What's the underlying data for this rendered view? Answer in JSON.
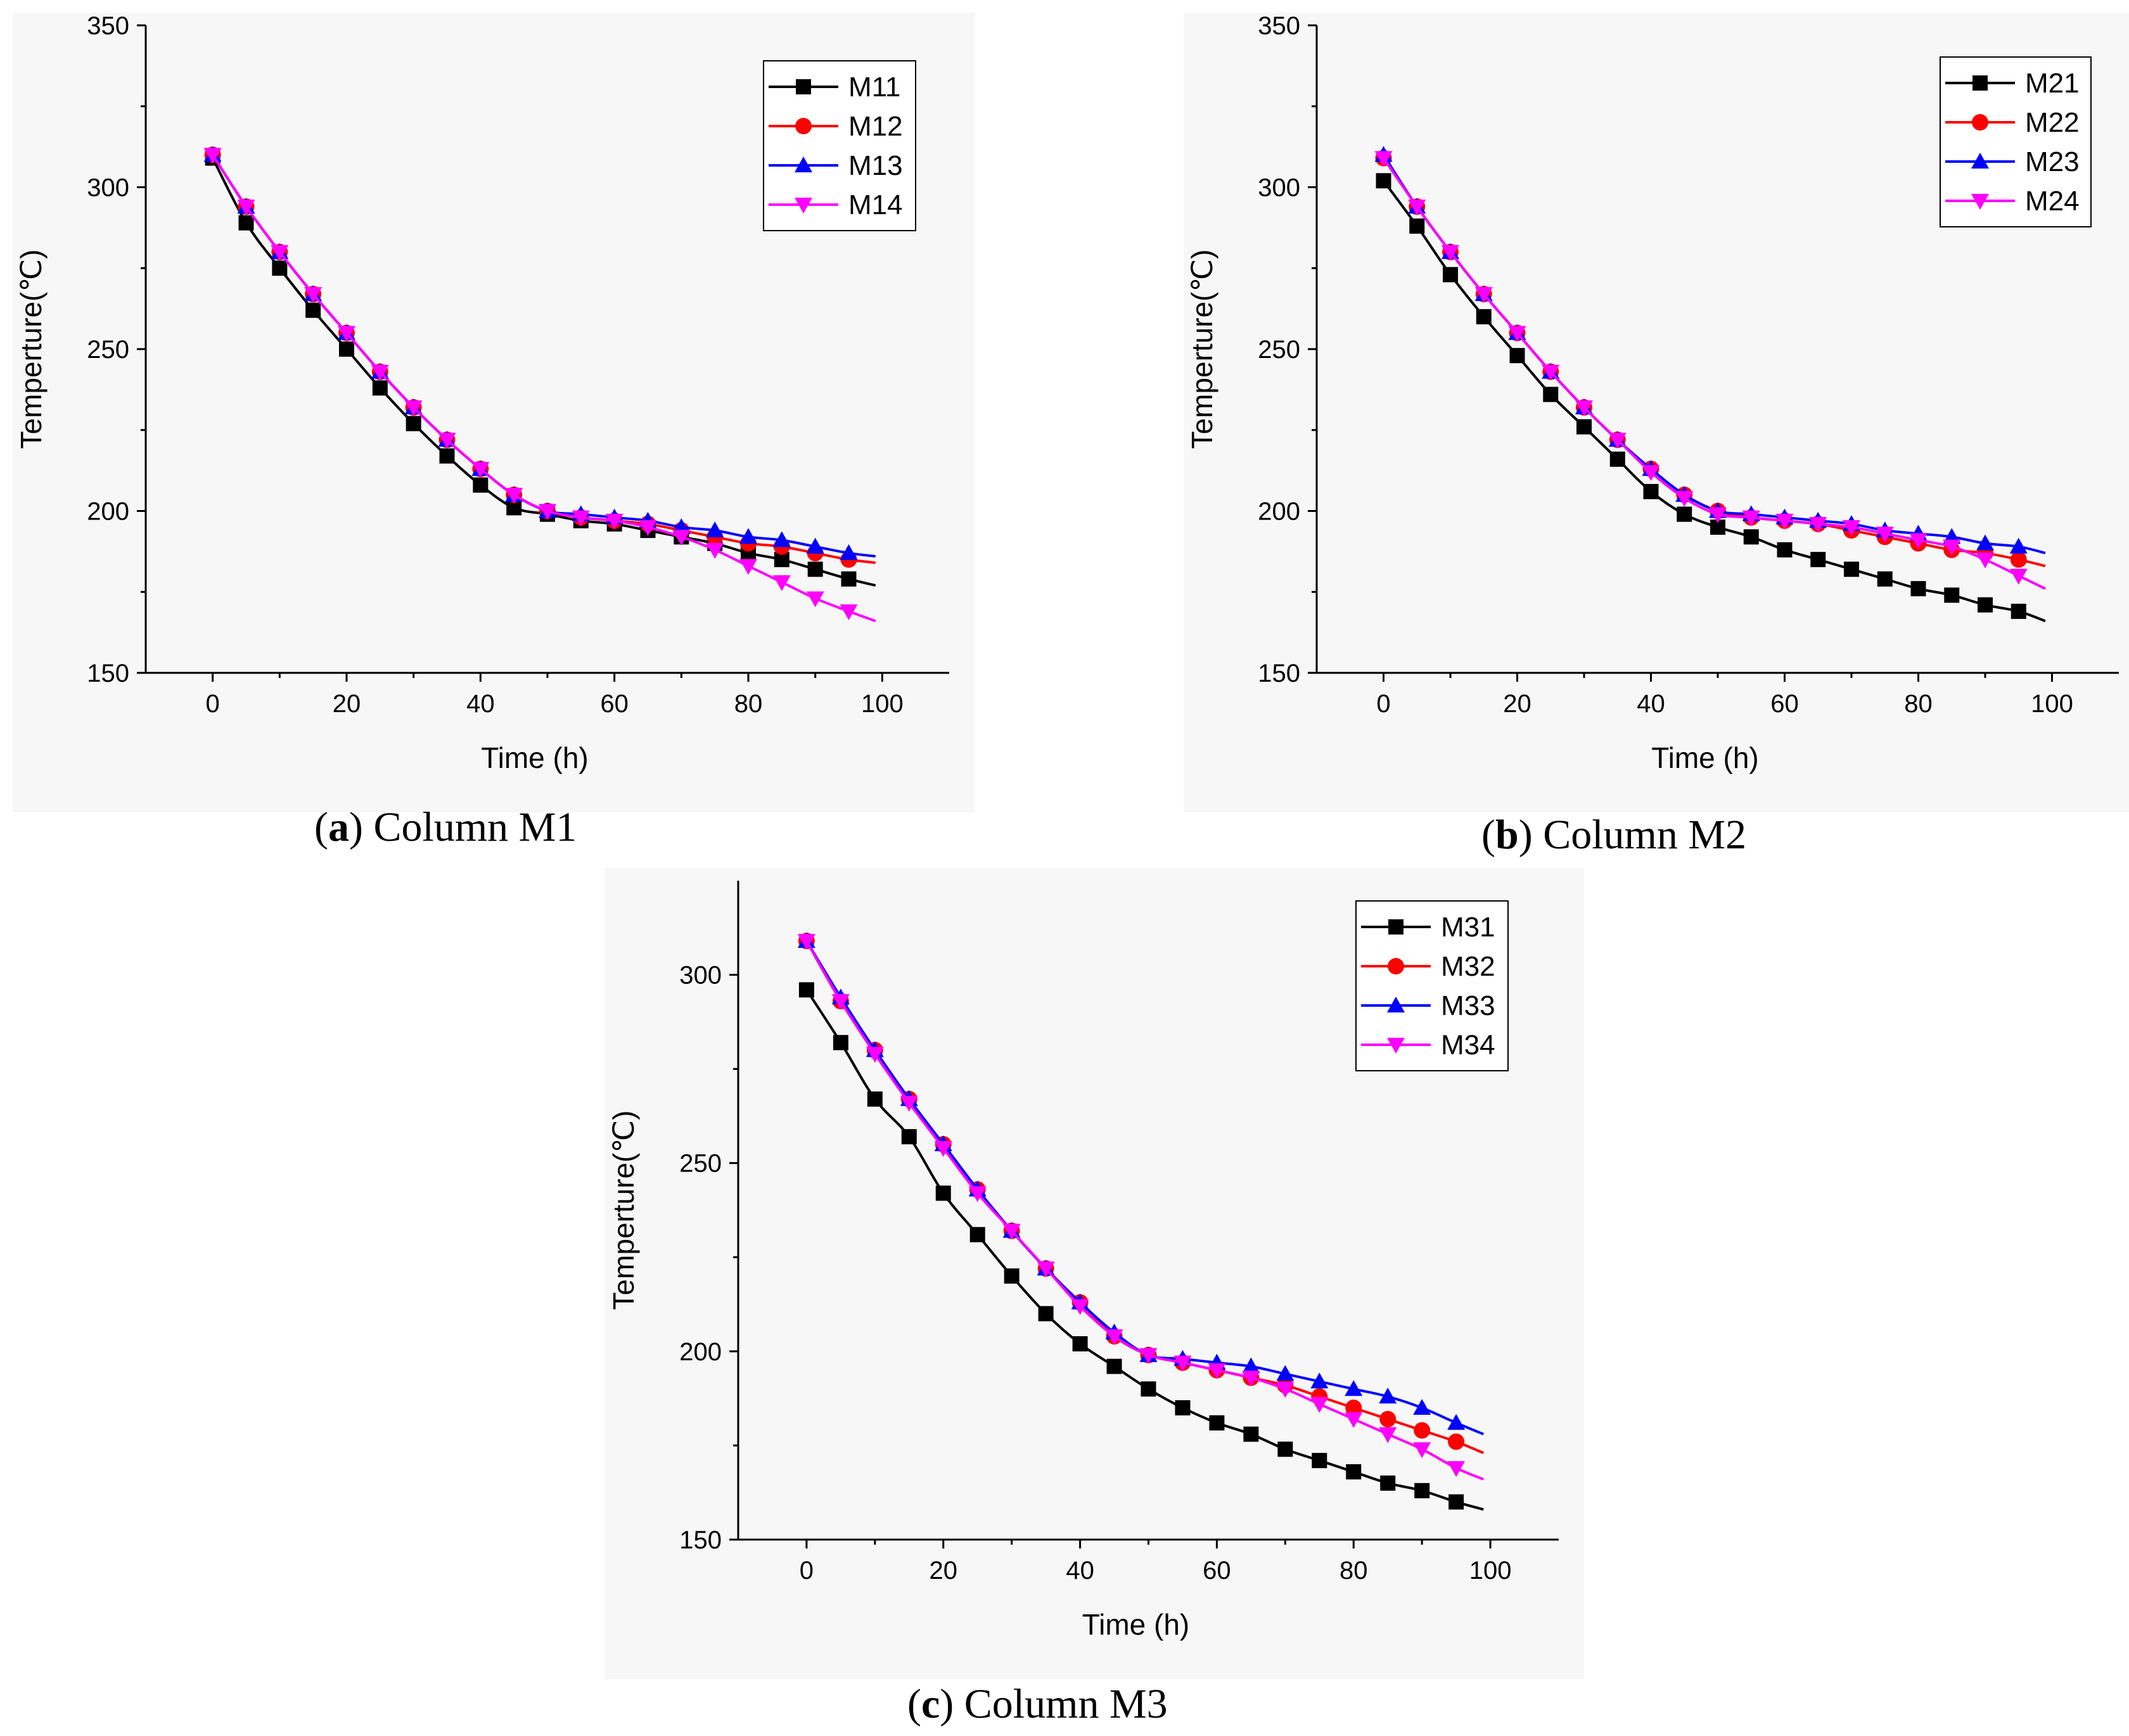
{
  "chart_data": [
    {
      "type": "line",
      "caption": {
        "letter": "a",
        "text": "Column M1"
      },
      "xlabel": "Time (h)",
      "ylabel": "Temperture(℃)",
      "xlim": [
        -10,
        110
      ],
      "ylim": [
        150,
        350
      ],
      "xticks": [
        0,
        20,
        40,
        60,
        80,
        100
      ],
      "yticks": [
        150,
        200,
        250,
        300,
        350
      ],
      "x": [
        0,
        5,
        10,
        15,
        20,
        25,
        30,
        35,
        40,
        45,
        50,
        55,
        60,
        65,
        70,
        75,
        80,
        85,
        90,
        95
      ],
      "x_end": 99,
      "series": [
        {
          "name": "M11",
          "color": "#000000",
          "marker": "square",
          "values": [
            309,
            289,
            275,
            262,
            250,
            238,
            227,
            217,
            208,
            201,
            199,
            197,
            196,
            194,
            192,
            190,
            187,
            185,
            182,
            179
          ],
          "end": 177
        },
        {
          "name": "M12",
          "color": "#ff0000",
          "marker": "circle",
          "values": [
            310,
            294,
            280,
            267,
            255,
            243,
            232,
            222,
            213,
            205,
            200,
            198,
            197,
            196,
            194,
            192,
            190,
            189,
            187,
            185
          ],
          "end": 184
        },
        {
          "name": "M13",
          "color": "#0000ff",
          "marker": "triangle-up",
          "values": [
            310,
            294,
            280,
            267,
            255,
            243,
            232,
            222,
            213,
            205,
            200,
            199,
            198,
            197,
            195,
            194,
            192,
            191,
            189,
            187
          ],
          "end": 186
        },
        {
          "name": "M14",
          "color": "#ff00ff",
          "marker": "triangle-down",
          "values": [
            310,
            294,
            280,
            267,
            255,
            243,
            232,
            222,
            213,
            205,
            200,
            198,
            197,
            195,
            192,
            188,
            183,
            178,
            173,
            169
          ],
          "end": 166
        }
      ]
    },
    {
      "type": "line",
      "caption": {
        "letter": "b",
        "text": "Column M2"
      },
      "xlabel": "Time (h)",
      "ylabel": "Temperture(℃)",
      "xlim": [
        -10,
        110
      ],
      "ylim": [
        150,
        350
      ],
      "xticks": [
        0,
        20,
        40,
        60,
        80,
        100
      ],
      "yticks": [
        150,
        200,
        250,
        300,
        350
      ],
      "x": [
        0,
        5,
        10,
        15,
        20,
        25,
        30,
        35,
        40,
        45,
        50,
        55,
        60,
        65,
        70,
        75,
        80,
        85,
        90,
        95
      ],
      "x_end": 99,
      "series": [
        {
          "name": "M21",
          "color": "#000000",
          "marker": "square",
          "values": [
            302,
            288,
            273,
            260,
            248,
            236,
            226,
            216,
            206,
            199,
            195,
            192,
            188,
            185,
            182,
            179,
            176,
            174,
            171,
            169
          ],
          "end": 166
        },
        {
          "name": "M22",
          "color": "#ff0000",
          "marker": "circle",
          "values": [
            309,
            294,
            280,
            267,
            255,
            243,
            232,
            222,
            213,
            205,
            200,
            198,
            197,
            196,
            194,
            192,
            190,
            188,
            187,
            185
          ],
          "end": 183
        },
        {
          "name": "M23",
          "color": "#0000ff",
          "marker": "triangle-up",
          "values": [
            310,
            294,
            280,
            267,
            255,
            243,
            232,
            222,
            213,
            205,
            200,
            199,
            198,
            197,
            196,
            194,
            193,
            192,
            190,
            189
          ],
          "end": 187
        },
        {
          "name": "M24",
          "color": "#ff00ff",
          "marker": "triangle-down",
          "values": [
            309,
            294,
            280,
            267,
            255,
            243,
            232,
            222,
            212,
            204,
            199,
            198,
            197,
            196,
            195,
            193,
            191,
            189,
            185,
            180
          ],
          "end": 176
        }
      ]
    },
    {
      "type": "line",
      "caption": {
        "letter": "c",
        "text": "Column M3"
      },
      "xlabel": "Time (h)",
      "ylabel": "Temperture(℃)",
      "xlim": [
        -10,
        110
      ],
      "ylim": [
        150,
        325
      ],
      "xticks": [
        0,
        20,
        40,
        60,
        80,
        100
      ],
      "yticks": [
        150,
        200,
        250,
        300
      ],
      "x": [
        0,
        5,
        10,
        15,
        20,
        25,
        30,
        35,
        40,
        45,
        50,
        55,
        60,
        65,
        70,
        75,
        80,
        85,
        90,
        95
      ],
      "x_end": 99,
      "series": [
        {
          "name": "M31",
          "color": "#000000",
          "marker": "square",
          "values": [
            296,
            282,
            267,
            257,
            242,
            231,
            220,
            210,
            202,
            196,
            190,
            185,
            181,
            178,
            174,
            171,
            168,
            165,
            163,
            160
          ],
          "end": 158
        },
        {
          "name": "M32",
          "color": "#ff0000",
          "marker": "circle",
          "values": [
            309,
            293,
            280,
            267,
            255,
            243,
            232,
            222,
            213,
            204,
            199,
            197,
            195,
            193,
            191,
            188,
            185,
            182,
            179,
            176
          ],
          "end": 173
        },
        {
          "name": "M33",
          "color": "#0000ff",
          "marker": "triangle-up",
          "values": [
            309,
            294,
            280,
            267,
            255,
            243,
            232,
            222,
            213,
            205,
            199,
            198,
            197,
            196,
            194,
            192,
            190,
            188,
            185,
            181
          ],
          "end": 178
        },
        {
          "name": "M34",
          "color": "#ff00ff",
          "marker": "triangle-down",
          "values": [
            309,
            293,
            279,
            266,
            254,
            242,
            232,
            222,
            212,
            204,
            199,
            197,
            195,
            193,
            190,
            186,
            182,
            178,
            174,
            169
          ],
          "end": 166
        }
      ]
    }
  ]
}
